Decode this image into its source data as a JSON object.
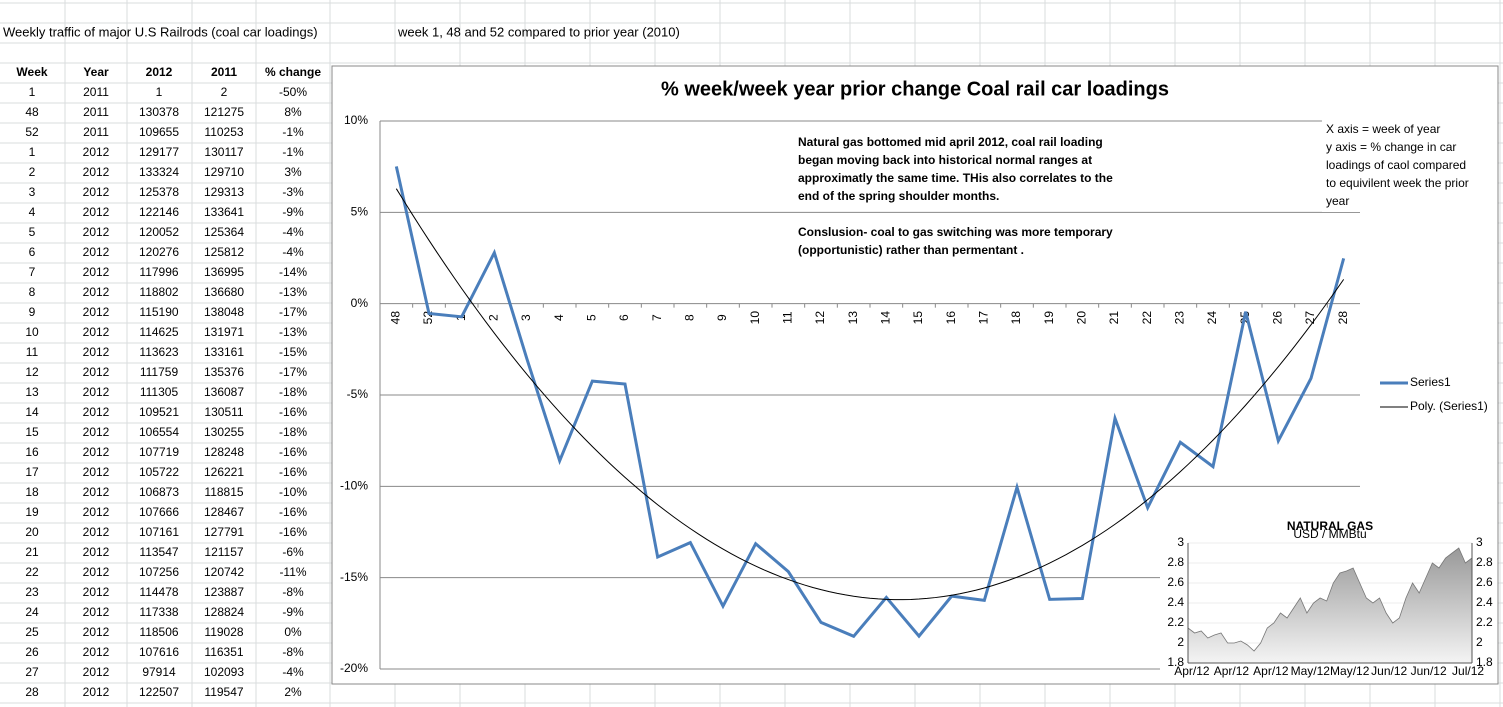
{
  "header": {
    "title": "Weekly traffic of major U.S Railrods (coal car loadings)",
    "subtitle": "week 1, 48 and 52 compared to prior year (2010)"
  },
  "table": {
    "columns": [
      "Week",
      "Year",
      "2012",
      "2011",
      "% change"
    ],
    "rows": [
      [
        1,
        2011,
        1,
        2,
        "-50%"
      ],
      [
        48,
        2011,
        130378,
        121275,
        "8%"
      ],
      [
        52,
        2011,
        109655,
        110253,
        "-1%"
      ],
      [
        1,
        2012,
        129177,
        130117,
        "-1%"
      ],
      [
        2,
        2012,
        133324,
        129710,
        "3%"
      ],
      [
        3,
        2012,
        125378,
        129313,
        "-3%"
      ],
      [
        4,
        2012,
        122146,
        133641,
        "-9%"
      ],
      [
        5,
        2012,
        120052,
        125364,
        "-4%"
      ],
      [
        6,
        2012,
        120276,
        125812,
        "-4%"
      ],
      [
        7,
        2012,
        117996,
        136995,
        "-14%"
      ],
      [
        8,
        2012,
        118802,
        136680,
        "-13%"
      ],
      [
        9,
        2012,
        115190,
        138048,
        "-17%"
      ],
      [
        10,
        2012,
        114625,
        131971,
        "-13%"
      ],
      [
        11,
        2012,
        113623,
        133161,
        "-15%"
      ],
      [
        12,
        2012,
        111759,
        135376,
        "-17%"
      ],
      [
        13,
        2012,
        111305,
        136087,
        "-18%"
      ],
      [
        14,
        2012,
        109521,
        130511,
        "-16%"
      ],
      [
        15,
        2012,
        106554,
        130255,
        "-18%"
      ],
      [
        16,
        2012,
        107719,
        128248,
        "-16%"
      ],
      [
        17,
        2012,
        105722,
        126221,
        "-16%"
      ],
      [
        18,
        2012,
        106873,
        118815,
        "-10%"
      ],
      [
        19,
        2012,
        107666,
        128467,
        "-16%"
      ],
      [
        20,
        2012,
        107161,
        127791,
        "-16%"
      ],
      [
        21,
        2012,
        113547,
        121157,
        "-6%"
      ],
      [
        22,
        2012,
        107256,
        120742,
        "-11%"
      ],
      [
        23,
        2012,
        114478,
        123887,
        "-8%"
      ],
      [
        24,
        2012,
        117338,
        128824,
        "-9%"
      ],
      [
        25,
        2012,
        118506,
        119028,
        "0%"
      ],
      [
        26,
        2012,
        107616,
        116351,
        "-8%"
      ],
      [
        27,
        2012,
        97914,
        102093,
        "-4%"
      ],
      [
        28,
        2012,
        122507,
        119547,
        "2%"
      ]
    ]
  },
  "chart_data": {
    "type": "line",
    "title": "% week/week year prior change Coal rail car loadings",
    "categories": [
      "48",
      "52",
      "1",
      "2",
      "3",
      "4",
      "5",
      "6",
      "7",
      "8",
      "9",
      "10",
      "11",
      "12",
      "13",
      "14",
      "15",
      "16",
      "17",
      "18",
      "19",
      "20",
      "21",
      "22",
      "23",
      "24",
      "25",
      "26",
      "27",
      "28"
    ],
    "series": [
      {
        "name": "Series1",
        "color": "#4a7ebb",
        "values": [
          7.51,
          -0.54,
          -0.72,
          2.79,
          -3.04,
          -8.6,
          -4.24,
          -4.4,
          -13.87,
          -13.08,
          -16.56,
          -13.14,
          -14.67,
          -17.45,
          -18.21,
          -16.08,
          -18.2,
          -16.01,
          -16.24,
          -10.05,
          -16.19,
          -16.14,
          -6.28,
          -11.17,
          -7.59,
          -8.92,
          -0.44,
          -7.51,
          -4.09,
          2.48
        ]
      }
    ],
    "trendline": {
      "name": "Poly. (Series1)",
      "color": "#000000"
    },
    "ylim": [
      -20,
      10
    ],
    "yticks": [
      {
        "value": -20,
        "label": "-20%"
      },
      {
        "value": -15,
        "label": "-15%"
      },
      {
        "value": -10,
        "label": "-10%"
      },
      {
        "value": -5,
        "label": "-5%"
      },
      {
        "value": 0,
        "label": "0%"
      },
      {
        "value": 5,
        "label": "5%"
      },
      {
        "value": 10,
        "label": "10%"
      }
    ],
    "grid": true,
    "legend": "right",
    "annotations": [
      {
        "lines": [
          "Natural gas bottomed mid april 2012,  coal rail loading",
          "began moving back into historical normal ranges  at",
          "approximatly the same time. THis also correlates to the",
          "end of the spring shoulder months.",
          "",
          "Conslusion- coal to gas switching was more temporary",
          "(opportunistic) rather than permentant ."
        ]
      },
      {
        "lines": [
          "X axis = week of year",
          "y axis = % change in  car",
          "loadings of caol compared",
          "to equivilent week the prior",
          "year"
        ]
      }
    ]
  },
  "inset": {
    "type": "area",
    "title": "NATURAL GAS",
    "subtitle": "USD / MMBtu",
    "values": [
      2.15,
      2.1,
      2.12,
      2.05,
      2.08,
      2.1,
      2.0,
      2.0,
      2.02,
      1.98,
      1.92,
      2.0,
      2.15,
      2.2,
      2.3,
      2.25,
      2.35,
      2.45,
      2.3,
      2.4,
      2.45,
      2.42,
      2.6,
      2.7,
      2.72,
      2.75,
      2.6,
      2.45,
      2.4,
      2.45,
      2.3,
      2.2,
      2.25,
      2.45,
      2.6,
      2.5,
      2.65,
      2.8,
      2.75,
      2.85,
      2.9,
      2.95,
      2.8,
      2.85
    ],
    "ylim": [
      1.8,
      3
    ],
    "yticks": [
      1.8,
      2,
      2.2,
      2.4,
      2.6,
      2.8,
      3
    ],
    "xlabels": [
      "Apr/12",
      "Apr/12",
      "Apr/12",
      "May/12",
      "May/12",
      "Jun/12",
      "Jun/12",
      "Jul/12"
    ]
  }
}
